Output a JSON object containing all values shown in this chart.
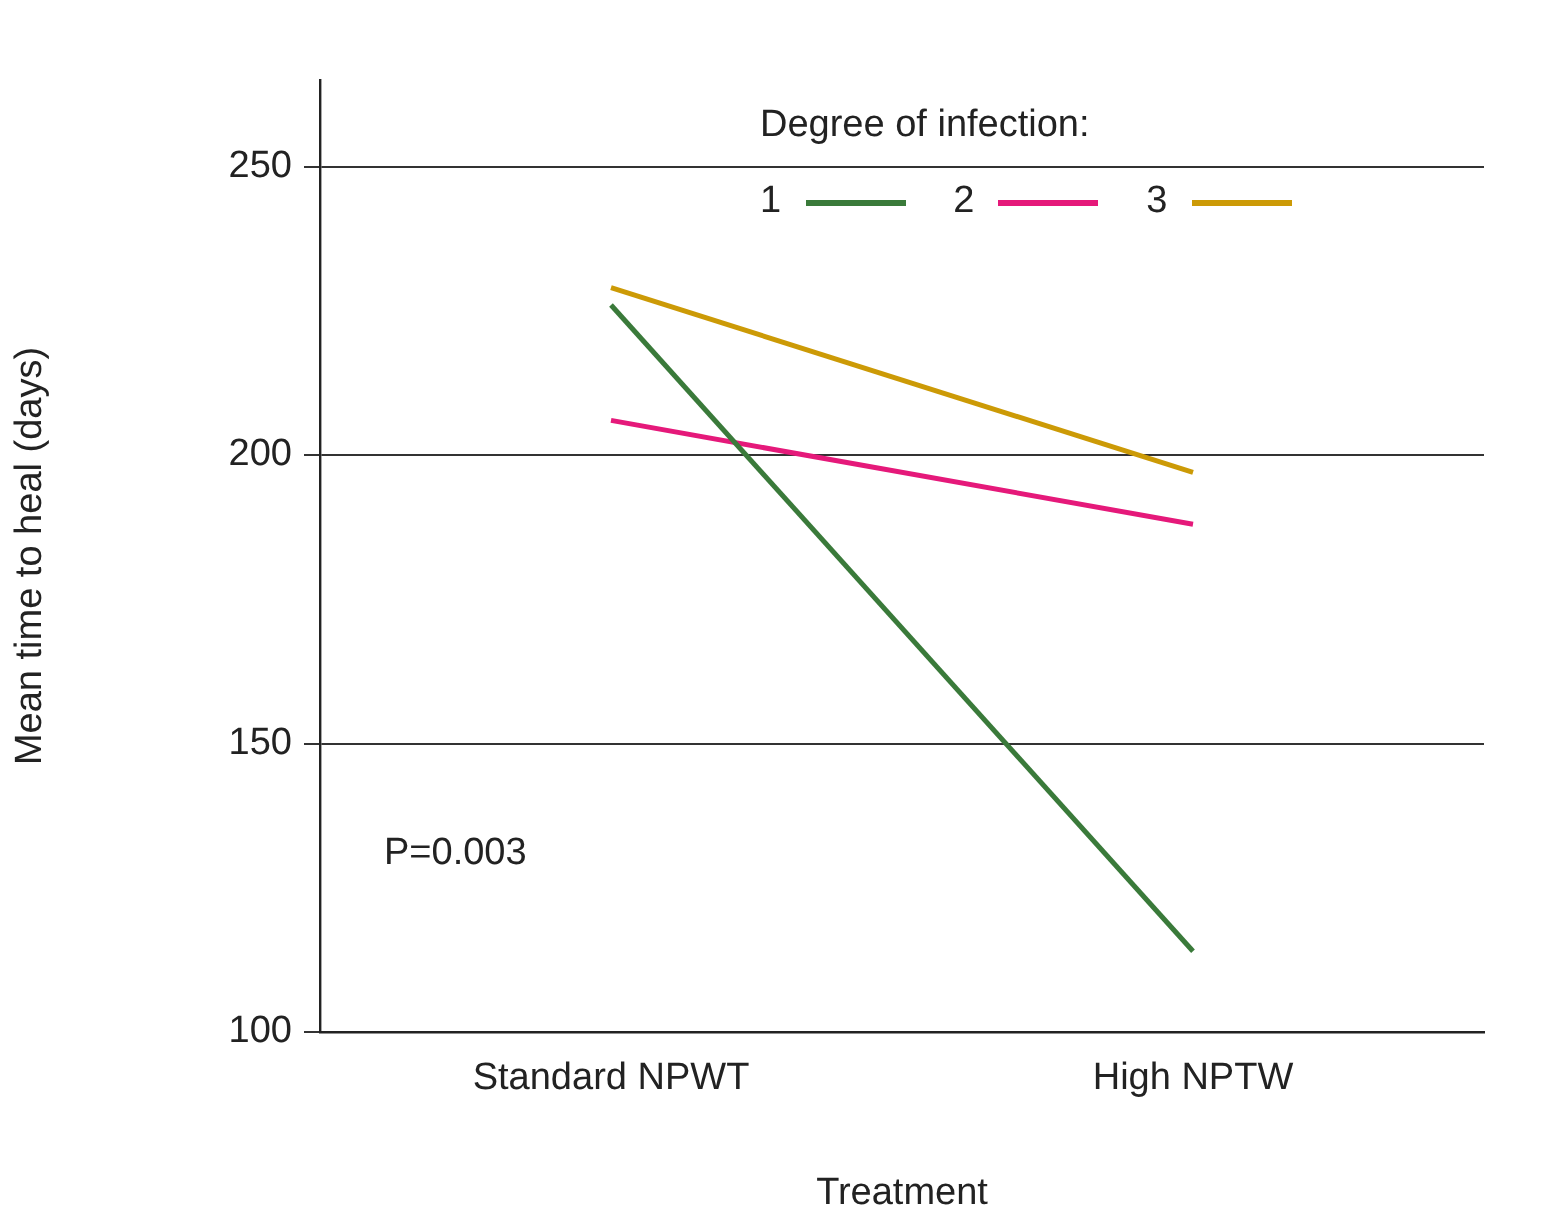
{
  "chart_data": {
    "type": "line",
    "categories": [
      "Standard NPWT",
      "High NPTW"
    ],
    "series": [
      {
        "name": "1",
        "color": "#3a7a3a",
        "values": [
          226,
          114
        ]
      },
      {
        "name": "2",
        "color": "#e5197a",
        "values": [
          206,
          188
        ]
      },
      {
        "name": "3",
        "color": "#cc9a06",
        "values": [
          229,
          197
        ]
      }
    ],
    "xlabel": "Treatment",
    "ylabel": "Mean time to heal (days)",
    "legend_title": "Degree of infection:",
    "ylim": [
      100,
      265
    ],
    "yticks": [
      100,
      150,
      200,
      250
    ],
    "grid": "y",
    "legend": "top right",
    "marker": "none",
    "line_style": "solid",
    "annotations": [
      "P=0.003"
    ]
  }
}
